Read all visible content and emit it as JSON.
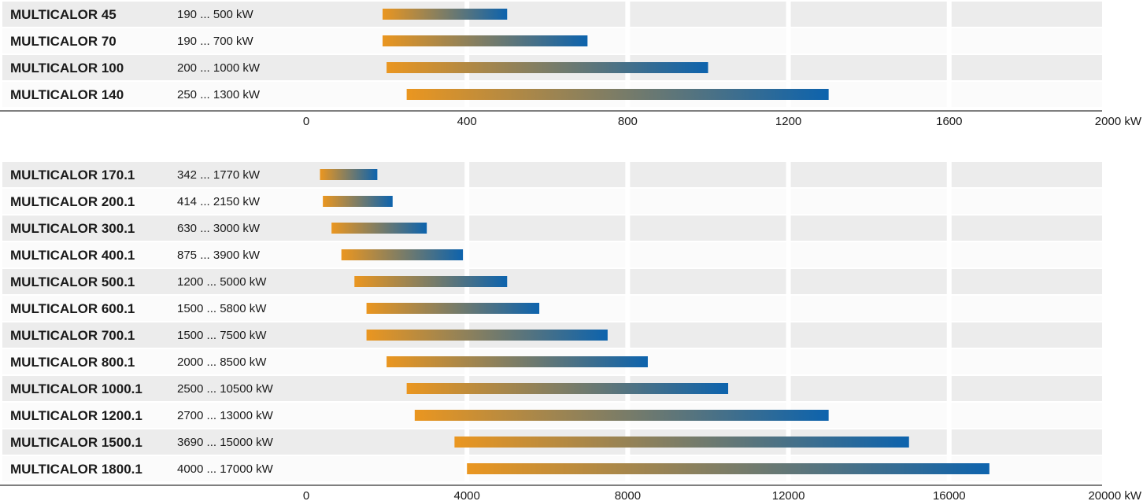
{
  "chart_data": [
    {
      "type": "bar",
      "orientation": "horizontal-range",
      "title": "",
      "unit": "kW",
      "xlim": [
        0,
        2000
      ],
      "ticks": [
        0,
        400,
        800,
        1200,
        1600,
        2000
      ],
      "tick_labels": [
        "0",
        "400",
        "800",
        "1200",
        "1600",
        "2000 kW"
      ],
      "gradient_colors": [
        "#ea9620",
        "#0d63ad"
      ],
      "rows": [
        {
          "name": "MULTICALOR 45",
          "range_label": "190 ... 500 kW",
          "min": 190,
          "max": 500
        },
        {
          "name": "MULTICALOR 70",
          "range_label": "190 ... 700 kW",
          "min": 190,
          "max": 700
        },
        {
          "name": "MULTICALOR 100",
          "range_label": "200 ... 1000 kW",
          "min": 200,
          "max": 1000
        },
        {
          "name": "MULTICALOR 140",
          "range_label": "250 ... 1300 kW",
          "min": 250,
          "max": 1300
        }
      ]
    },
    {
      "type": "bar",
      "orientation": "horizontal-range",
      "title": "",
      "unit": "kW",
      "xlim": [
        0,
        20000
      ],
      "ticks": [
        0,
        4000,
        8000,
        12000,
        16000,
        20000
      ],
      "tick_labels": [
        "0",
        "4000",
        "8000",
        "12000",
        "16000",
        "20000 kW"
      ],
      "gradient_colors": [
        "#ea9620",
        "#0d63ad"
      ],
      "rows": [
        {
          "name": "MULTICALOR 170.1",
          "range_label": "342 ... 1770 kW",
          "min": 342,
          "max": 1770
        },
        {
          "name": "MULTICALOR 200.1",
          "range_label": "414 ... 2150 kW",
          "min": 414,
          "max": 2150
        },
        {
          "name": "MULTICALOR 300.1",
          "range_label": "630 ... 3000 kW",
          "min": 630,
          "max": 3000
        },
        {
          "name": "MULTICALOR 400.1",
          "range_label": "875 ... 3900 kW",
          "min": 875,
          "max": 3900
        },
        {
          "name": "MULTICALOR 500.1",
          "range_label": "1200 ... 5000 kW",
          "min": 1200,
          "max": 5000
        },
        {
          "name": "MULTICALOR 600.1",
          "range_label": "1500 ... 5800 kW",
          "min": 1500,
          "max": 5800
        },
        {
          "name": "MULTICALOR 700.1",
          "range_label": "1500 ... 7500 kW",
          "min": 1500,
          "max": 7500
        },
        {
          "name": "MULTICALOR 800.1",
          "range_label": "2000 ... 8500 kW",
          "min": 2000,
          "max": 8500
        },
        {
          "name": "MULTICALOR 1000.1",
          "range_label": "2500 ... 10500 kW",
          "min": 2500,
          "max": 10500
        },
        {
          "name": "MULTICALOR 1200.1",
          "range_label": "2700 ... 13000 kW",
          "min": 2700,
          "max": 13000
        },
        {
          "name": "MULTICALOR 1500.1",
          "range_label": "3690 ... 15000 kW",
          "min": 3690,
          "max": 15000
        },
        {
          "name": "MULTICALOR 1800.1",
          "range_label": "4000 ... 17000 kW",
          "min": 4000,
          "max": 17000
        }
      ]
    }
  ]
}
